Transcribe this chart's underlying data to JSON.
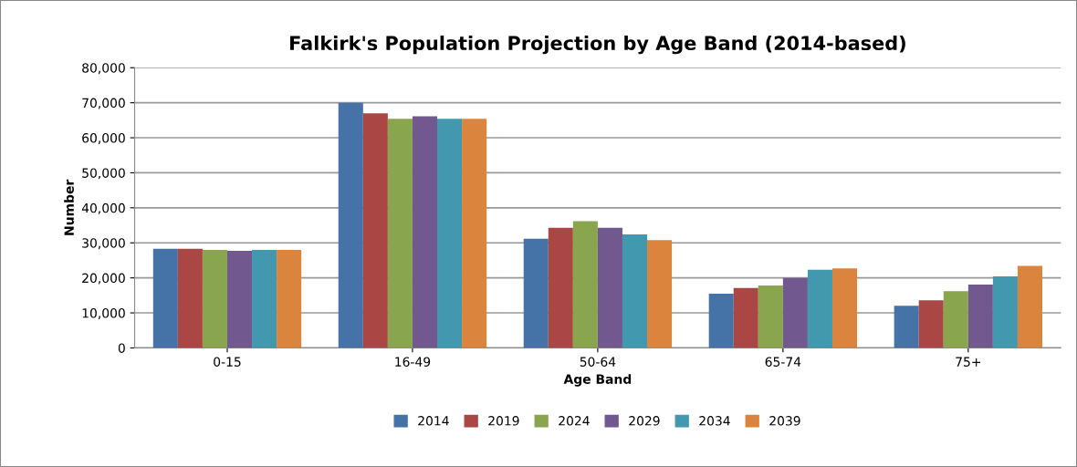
{
  "chart_data": {
    "type": "bar",
    "title": "Falkirk's Population Projection by Age Band (2014-based)",
    "xlabel": "Age Band",
    "ylabel": "Number",
    "categories": [
      "0-15",
      "16-49",
      "50-64",
      "65-74",
      "75+"
    ],
    "series": [
      {
        "name": "2014",
        "color": "#4572a7",
        "values": [
          28300,
          70000,
          31200,
          15500,
          12000
        ]
      },
      {
        "name": "2019",
        "color": "#aa4643",
        "values": [
          28300,
          67000,
          34300,
          17100,
          13600
        ]
      },
      {
        "name": "2024",
        "color": "#89a54e",
        "values": [
          28000,
          65400,
          36200,
          17800,
          16200
        ]
      },
      {
        "name": "2029",
        "color": "#71588f",
        "values": [
          27700,
          66100,
          34300,
          20000,
          18100
        ]
      },
      {
        "name": "2034",
        "color": "#4198af",
        "values": [
          28000,
          65400,
          32400,
          22300,
          20400
        ]
      },
      {
        "name": "2039",
        "color": "#db843d",
        "values": [
          28000,
          65400,
          30800,
          22700,
          23400
        ]
      }
    ],
    "ylim": [
      0,
      80000
    ],
    "yticks": [
      {
        "value": 0,
        "label": "0"
      },
      {
        "value": 10000,
        "label": "10,000"
      },
      {
        "value": 20000,
        "label": "20,000"
      },
      {
        "value": 30000,
        "label": "30,000"
      },
      {
        "value": 40000,
        "label": "40,000"
      },
      {
        "value": 50000,
        "label": "50,000"
      },
      {
        "value": 60000,
        "label": "60,000"
      },
      {
        "value": 70000,
        "label": "70,000"
      },
      {
        "value": 80000,
        "label": "80,000"
      }
    ],
    "grid": "y",
    "legend": "bottom"
  }
}
